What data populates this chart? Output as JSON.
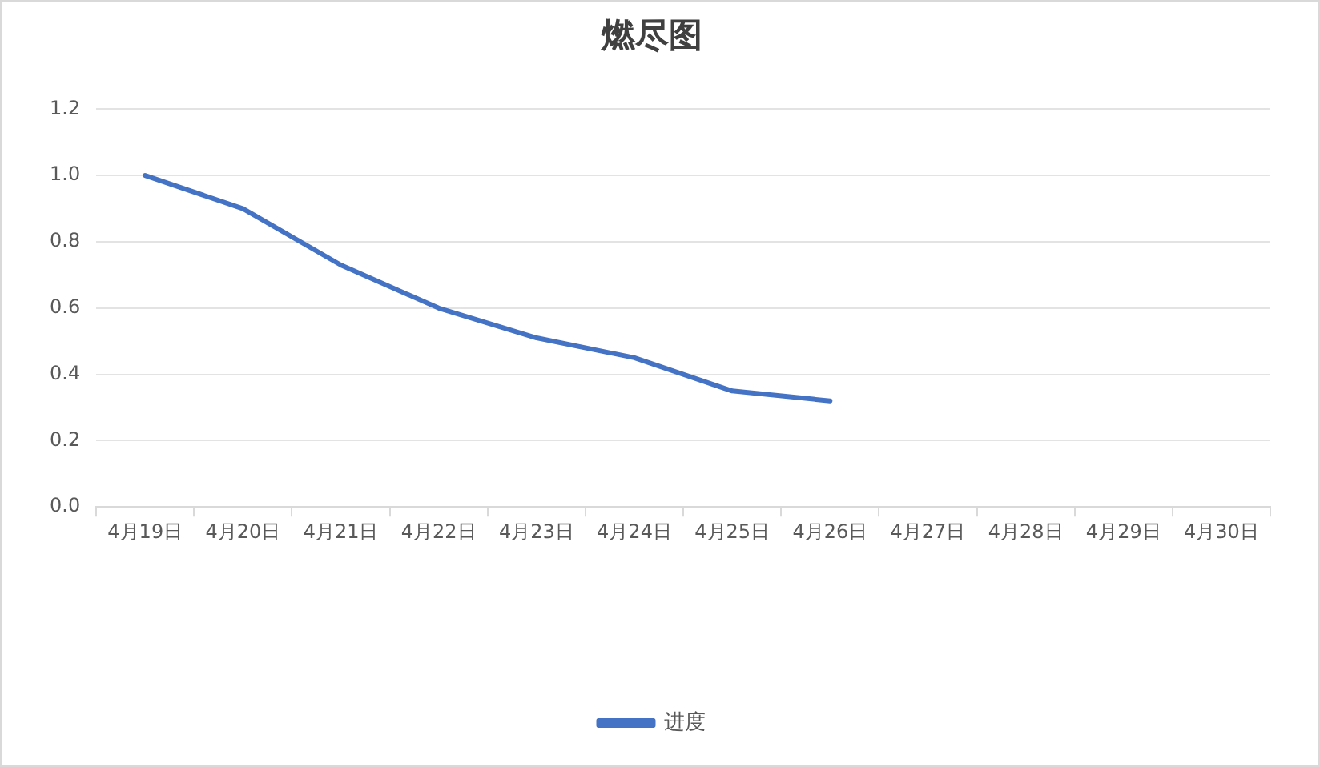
{
  "chart_data": {
    "type": "line",
    "title": "燃尽图",
    "categories": [
      "4月19日",
      "4月20日",
      "4月21日",
      "4月22日",
      "4月23日",
      "4月24日",
      "4月25日",
      "4月26日",
      "4月27日",
      "4月28日",
      "4月29日",
      "4月30日"
    ],
    "series": [
      {
        "name": "进度",
        "color": "#4472c4",
        "values": [
          1.0,
          0.9,
          0.73,
          0.6,
          0.51,
          0.45,
          0.35,
          0.32,
          null,
          null,
          null,
          null
        ]
      }
    ],
    "ylim": [
      0,
      1.2
    ],
    "yticks": [
      {
        "value": 0,
        "label": "0.0"
      },
      0.2,
      0.4,
      0.6,
      0.8,
      {
        "value": 1,
        "label": "1.0"
      },
      1.2
    ],
    "grid": "y",
    "legend": "bottom"
  }
}
